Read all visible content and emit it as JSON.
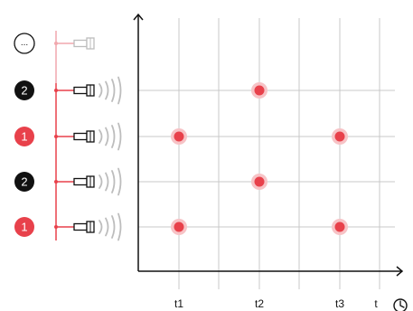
{
  "rows": [
    {
      "badge": "...",
      "badge_style": "outline",
      "active": false
    },
    {
      "badge": "2",
      "badge_style": "black",
      "active": true
    },
    {
      "badge": "1",
      "badge_style": "red",
      "active": true
    },
    {
      "badge": "2",
      "badge_style": "black",
      "active": true
    },
    {
      "badge": "1",
      "badge_style": "red",
      "active": true
    }
  ],
  "axis": {
    "x_ticks": [
      "t1",
      "t2",
      "t3"
    ],
    "x_label": "t",
    "clock_icon": "clock-icon"
  },
  "events": [
    {
      "row": 1,
      "tick": 1
    },
    {
      "row": 2,
      "tick": 0
    },
    {
      "row": 2,
      "tick": 2
    },
    {
      "row": 3,
      "tick": 1
    },
    {
      "row": 4,
      "tick": 0
    },
    {
      "row": 4,
      "tick": 2
    }
  ],
  "colors": {
    "red": "#e8414b",
    "red_halo": "#f7c3c6",
    "black": "#111111",
    "grid": "#c8c8c8",
    "bus": "#e8414b",
    "inactive": "#f1a7ad",
    "wave": "#bdbdbd"
  }
}
